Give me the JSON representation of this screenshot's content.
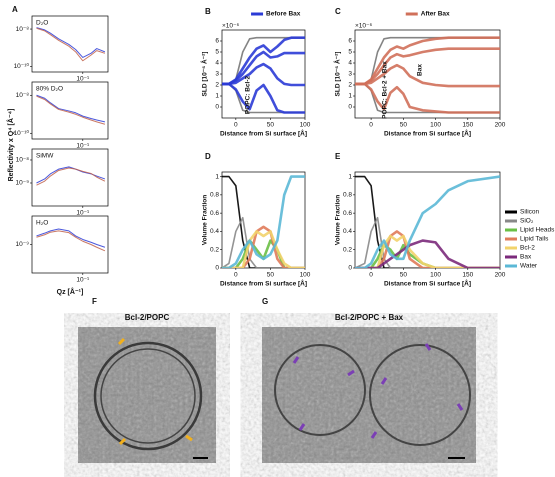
{
  "panel_labels": [
    "A",
    "B",
    "C",
    "D",
    "E",
    "F",
    "G"
  ],
  "figure_a": {
    "ylabel": "Reflectivity x Q⁴ [Å⁻⁴]",
    "xlabel": "Qz [Å⁻¹]"
  },
  "chart_data": [
    {
      "type": "line",
      "annotation": "D₂O",
      "xlog": true,
      "ylog": true,
      "xlim": [
        0.008,
        0.35
      ],
      "ylim": [
        5e-11,
        5e-08
      ],
      "xticks": [
        {
          "value": 0.1,
          "label": "10⁻¹"
        }
      ],
      "yticks": [
        {
          "value": 1e-08,
          "label": "10⁻⁸"
        },
        {
          "value": 1e-10,
          "label": "10⁻¹⁰"
        }
      ],
      "x": [
        0.01,
        0.015,
        0.02,
        0.03,
        0.05,
        0.07,
        0.1,
        0.15,
        0.2,
        0.3
      ],
      "series": [
        {
          "color": "#2b3bd6",
          "values": [
            1.2e-08,
            9e-09,
            6e-09,
            3e-09,
            1.5e-09,
            8e-10,
            3e-10,
            5e-10,
            9e-10,
            6e-10
          ]
        },
        {
          "color": "#c0604a",
          "values": [
            1.1e-08,
            8e-09,
            5e-09,
            2.5e-09,
            1.2e-09,
            6e-10,
            2e-10,
            4e-10,
            7e-10,
            5e-10
          ]
        }
      ]
    },
    {
      "type": "line",
      "annotation": "80% D₂O",
      "xlog": true,
      "ylog": true,
      "xlim": [
        0.008,
        0.35
      ],
      "ylim": [
        5e-11,
        5e-08
      ],
      "xticks": [
        {
          "value": 0.1,
          "label": "10⁻¹"
        }
      ],
      "yticks": [
        {
          "value": 1e-08,
          "label": "10⁻⁸"
        },
        {
          "value": 1e-10,
          "label": "10⁻¹⁰"
        }
      ],
      "x": [
        0.01,
        0.015,
        0.02,
        0.03,
        0.05,
        0.07,
        0.1,
        0.15,
        0.2,
        0.3
      ],
      "series": [
        {
          "color": "#2b3bd6",
          "values": [
            1e-08,
            7e-09,
            4e-09,
            2e-09,
            1.5e-09,
            1.2e-09,
            8e-10,
            6e-10,
            5e-10,
            4e-10
          ]
        },
        {
          "color": "#c0604a",
          "values": [
            9e-09,
            6e-09,
            3.5e-09,
            1.8e-09,
            1.3e-09,
            1e-09,
            7e-10,
            5e-10,
            4e-10,
            3e-10
          ]
        }
      ]
    },
    {
      "type": "line",
      "annotation": "SiMW",
      "xlog": true,
      "ylog": true,
      "xlim": [
        0.008,
        0.35
      ],
      "ylim": [
        1e-10,
        3e-08
      ],
      "xticks": [
        {
          "value": 0.1,
          "label": "10⁻¹"
        }
      ],
      "yticks": [
        {
          "value": 1e-08,
          "label": "10⁻⁸"
        },
        {
          "value": 1e-09,
          "label": "10⁻⁹"
        }
      ],
      "x": [
        0.01,
        0.015,
        0.02,
        0.03,
        0.05,
        0.07,
        0.1,
        0.15,
        0.2,
        0.3
      ],
      "series": [
        {
          "color": "#2b3bd6",
          "values": [
            1e-09,
            1.5e-09,
            2.5e-09,
            4e-09,
            5e-09,
            4e-09,
            3e-09,
            2.5e-09,
            2e-09,
            1.5e-09
          ]
        },
        {
          "color": "#c0604a",
          "values": [
            8e-10,
            1.2e-09,
            2e-09,
            3.5e-09,
            4.5e-09,
            4e-09,
            3.2e-09,
            2.6e-09,
            1.8e-09,
            1.2e-09
          ]
        }
      ]
    },
    {
      "type": "line",
      "annotation": "H₂O",
      "xlog": true,
      "ylog": true,
      "xlim": [
        0.008,
        0.35
      ],
      "ylim": [
        1e-10,
        1e-08
      ],
      "xticks": [
        {
          "value": 0.1,
          "label": "10⁻¹"
        }
      ],
      "yticks": [
        {
          "value": 1e-09,
          "label": "10⁻⁹"
        }
      ],
      "x": [
        0.01,
        0.015,
        0.02,
        0.03,
        0.05,
        0.07,
        0.1,
        0.15,
        0.2,
        0.3
      ],
      "series": [
        {
          "color": "#2b3bd6",
          "values": [
            2e-09,
            2.5e-09,
            3e-09,
            3.5e-09,
            3e-09,
            2e-09,
            1.5e-09,
            1.2e-09,
            1e-09,
            8e-10
          ]
        },
        {
          "color": "#c0604a",
          "values": [
            1.8e-09,
            2.2e-09,
            2.7e-09,
            3e-09,
            2.6e-09,
            1.8e-09,
            1.3e-09,
            1e-09,
            8e-10,
            6e-10
          ]
        }
      ]
    },
    {
      "type": "line",
      "ylabel": "SLD [10⁻⁶ Å⁻²]",
      "xlabel": "Distance from Si surface [Å]",
      "multiplier": "×10⁻⁶",
      "legend": "top",
      "annotations": [
        "POPC: Bcl-2"
      ],
      "xlim": [
        -20,
        100
      ],
      "ylim": [
        -1,
        7
      ],
      "xticks": [
        0,
        50,
        100
      ],
      "yticks": [
        0,
        1,
        2,
        3,
        4,
        5,
        6
      ],
      "x": [
        -20,
        -10,
        0,
        10,
        20,
        30,
        40,
        50,
        60,
        70,
        80,
        100
      ],
      "series": [
        {
          "color": "#777777",
          "values": [
            2.1,
            2.1,
            2.5,
            5,
            6.2,
            6.3,
            6.3,
            6.3,
            6.3,
            6.3,
            6.3,
            6.3
          ]
        },
        {
          "color": "#777777",
          "values": [
            2.1,
            2.1,
            1.5,
            -0.3,
            -0.5,
            -0.5,
            -0.5,
            -0.5,
            -0.5,
            -0.5,
            -0.5,
            -0.5
          ]
        },
        {
          "name": "Before Bax",
          "color": "#2b3bd6",
          "values": [
            2.1,
            2.1,
            2.5,
            3.5,
            4.5,
            5.3,
            5.6,
            5.0,
            5.5,
            6.1,
            6.3,
            6.3
          ]
        },
        {
          "color": "#2b3bd6",
          "values": [
            2.1,
            2.1,
            2.4,
            3,
            3.8,
            4.6,
            5.0,
            4.5,
            4.6,
            4.9,
            4.9,
            4.9
          ]
        },
        {
          "color": "#2b3bd6",
          "values": [
            2.1,
            2.1,
            2.2,
            2.6,
            3.0,
            3.6,
            3.9,
            3.5,
            2.6,
            2.1,
            2,
            2
          ]
        },
        {
          "color": "#2b3bd6",
          "values": [
            2.1,
            2.1,
            1.6,
            0.5,
            -0.2,
            1.5,
            2.0,
            1.0,
            -0.3,
            -0.5,
            -0.5,
            -0.5
          ]
        }
      ]
    },
    {
      "type": "line",
      "ylabel": "SLD [10⁻⁶ Å⁻²]",
      "xlabel": "Distance from Si surface [Å]",
      "multiplier": "×10⁻⁶",
      "legend": "top",
      "annotations": [
        "POPC: Bcl-2 + Bax",
        "Bax"
      ],
      "xlim": [
        -25,
        200
      ],
      "ylim": [
        -1,
        7
      ],
      "xticks": [
        0,
        50,
        100,
        150,
        200
      ],
      "yticks": [
        0,
        1,
        2,
        3,
        4,
        5,
        6
      ],
      "x": [
        -25,
        -10,
        0,
        10,
        20,
        30,
        40,
        50,
        60,
        80,
        100,
        120,
        150,
        200
      ],
      "series": [
        {
          "color": "#777777",
          "values": [
            2.1,
            2.1,
            2.5,
            5,
            6.2,
            6.3,
            6.3,
            6.3,
            6.3,
            6.3,
            6.3,
            6.3,
            6.3,
            6.3
          ]
        },
        {
          "color": "#777777",
          "values": [
            2.1,
            2.1,
            1.5,
            -0.3,
            -0.5,
            -0.5,
            -0.5,
            -0.5,
            -0.5,
            -0.5,
            -0.5,
            -0.5,
            -0.5,
            -0.5
          ]
        },
        {
          "name": "After Bax",
          "color": "#d0705a",
          "values": [
            2.1,
            2.1,
            2.5,
            3.5,
            4.5,
            5.2,
            5.5,
            5.3,
            5.6,
            6,
            6.2,
            6.3,
            6.3,
            6.3
          ]
        },
        {
          "color": "#d0705a",
          "values": [
            2.1,
            2.1,
            2.4,
            3,
            3.8,
            4.5,
            4.8,
            4.6,
            4.7,
            5,
            5.2,
            5.3,
            5.3,
            5.3
          ]
        },
        {
          "color": "#d0705a",
          "values": [
            2.1,
            2.1,
            2.2,
            2.6,
            3.0,
            3.5,
            3.8,
            3.5,
            2.8,
            2.2,
            2,
            1.9,
            1.9,
            1.9
          ]
        },
        {
          "color": "#d0705a",
          "values": [
            2.1,
            2.1,
            1.6,
            0.5,
            -0.2,
            1.3,
            1.8,
            1.2,
            0,
            -0.3,
            -0.4,
            -0.5,
            -0.5,
            -0.5
          ]
        }
      ]
    },
    {
      "type": "line",
      "ylabel": "Volume Fraction",
      "xlabel": "Distance from Si surface [Å]",
      "xlim": [
        -20,
        100
      ],
      "ylim": [
        0,
        1.05
      ],
      "xticks": [
        0,
        50,
        100
      ],
      "yticks": [
        0,
        0.2,
        0.4,
        0.6,
        0.8,
        1
      ],
      "x": [
        -20,
        -10,
        0,
        10,
        20,
        30,
        40,
        50,
        60,
        70,
        80,
        90,
        100
      ],
      "series": [
        {
          "color": "#000000",
          "values": [
            1,
            1,
            0.9,
            0.3,
            0,
            0,
            0,
            0,
            0,
            0,
            0,
            0,
            0
          ]
        },
        {
          "color": "#888888",
          "values": [
            0,
            0.05,
            0.4,
            0.55,
            0.1,
            0,
            0,
            0,
            0,
            0,
            0,
            0,
            0
          ]
        },
        {
          "color": "#6abf45",
          "values": [
            0,
            0,
            0,
            0.1,
            0.3,
            0.2,
            0.1,
            0.3,
            0.2,
            0,
            0,
            0,
            0
          ]
        },
        {
          "color": "#e07b5a",
          "values": [
            0,
            0,
            0,
            0,
            0.1,
            0.4,
            0.45,
            0.4,
            0.1,
            0,
            0,
            0,
            0
          ]
        },
        {
          "color": "#f2d36b",
          "values": [
            0,
            0,
            0,
            0,
            0.3,
            0.4,
            0.35,
            0.4,
            0.2,
            0.05,
            0,
            0,
            0
          ]
        },
        {
          "color": "#5bb8d6",
          "values": [
            0,
            0,
            0.05,
            0.2,
            0.3,
            0.15,
            0.1,
            0.15,
            0.3,
            0.8,
            1,
            1,
            1
          ]
        }
      ]
    },
    {
      "type": "line",
      "ylabel": "Volume Fraction",
      "xlabel": "Distance from Si surface [Å]",
      "legend": "right",
      "xlim": [
        -25,
        200
      ],
      "ylim": [
        0,
        1.05
      ],
      "xticks": [
        0,
        50,
        100,
        150,
        200
      ],
      "yticks": [
        0,
        0.2,
        0.4,
        0.6,
        0.8,
        1
      ],
      "x": [
        -25,
        -10,
        0,
        10,
        20,
        30,
        40,
        50,
        60,
        80,
        100,
        120,
        150,
        200
      ],
      "series": [
        {
          "name": "Silicon",
          "color": "#000000",
          "values": [
            1,
            1,
            0.9,
            0.3,
            0,
            0,
            0,
            0,
            0,
            0,
            0,
            0,
            0,
            0
          ]
        },
        {
          "name": "SiO₂",
          "color": "#888888",
          "values": [
            0,
            0.05,
            0.4,
            0.55,
            0.1,
            0,
            0,
            0,
            0,
            0,
            0,
            0,
            0,
            0
          ]
        },
        {
          "name": "Lipid Heads",
          "color": "#6abf45",
          "values": [
            0,
            0,
            0,
            0.1,
            0.25,
            0.2,
            0.1,
            0.25,
            0.15,
            0.05,
            0,
            0,
            0,
            0
          ]
        },
        {
          "name": "Lipid Tails",
          "color": "#e07b5a",
          "values": [
            0,
            0,
            0,
            0,
            0.1,
            0.35,
            0.4,
            0.35,
            0.1,
            0,
            0,
            0,
            0,
            0
          ]
        },
        {
          "name": "Bcl-2",
          "color": "#f2d36b",
          "values": [
            0,
            0,
            0,
            0,
            0.25,
            0.35,
            0.3,
            0.35,
            0.2,
            0.05,
            0,
            0,
            0,
            0
          ]
        },
        {
          "name": "Bax",
          "color": "#7b2a7b",
          "values": [
            0,
            0,
            0,
            0,
            0.05,
            0.1,
            0.15,
            0.2,
            0.25,
            0.3,
            0.28,
            0.1,
            0,
            0
          ]
        },
        {
          "name": "Water",
          "color": "#5bb8d6",
          "values": [
            0,
            0,
            0.05,
            0.2,
            0.3,
            0.15,
            0.1,
            0.1,
            0.3,
            0.6,
            0.7,
            0.85,
            0.95,
            1
          ]
        }
      ]
    }
  ],
  "micrographs": [
    {
      "title": "Bcl-2/POPC"
    },
    {
      "title": "Bcl-2/POPC + Bax"
    }
  ]
}
